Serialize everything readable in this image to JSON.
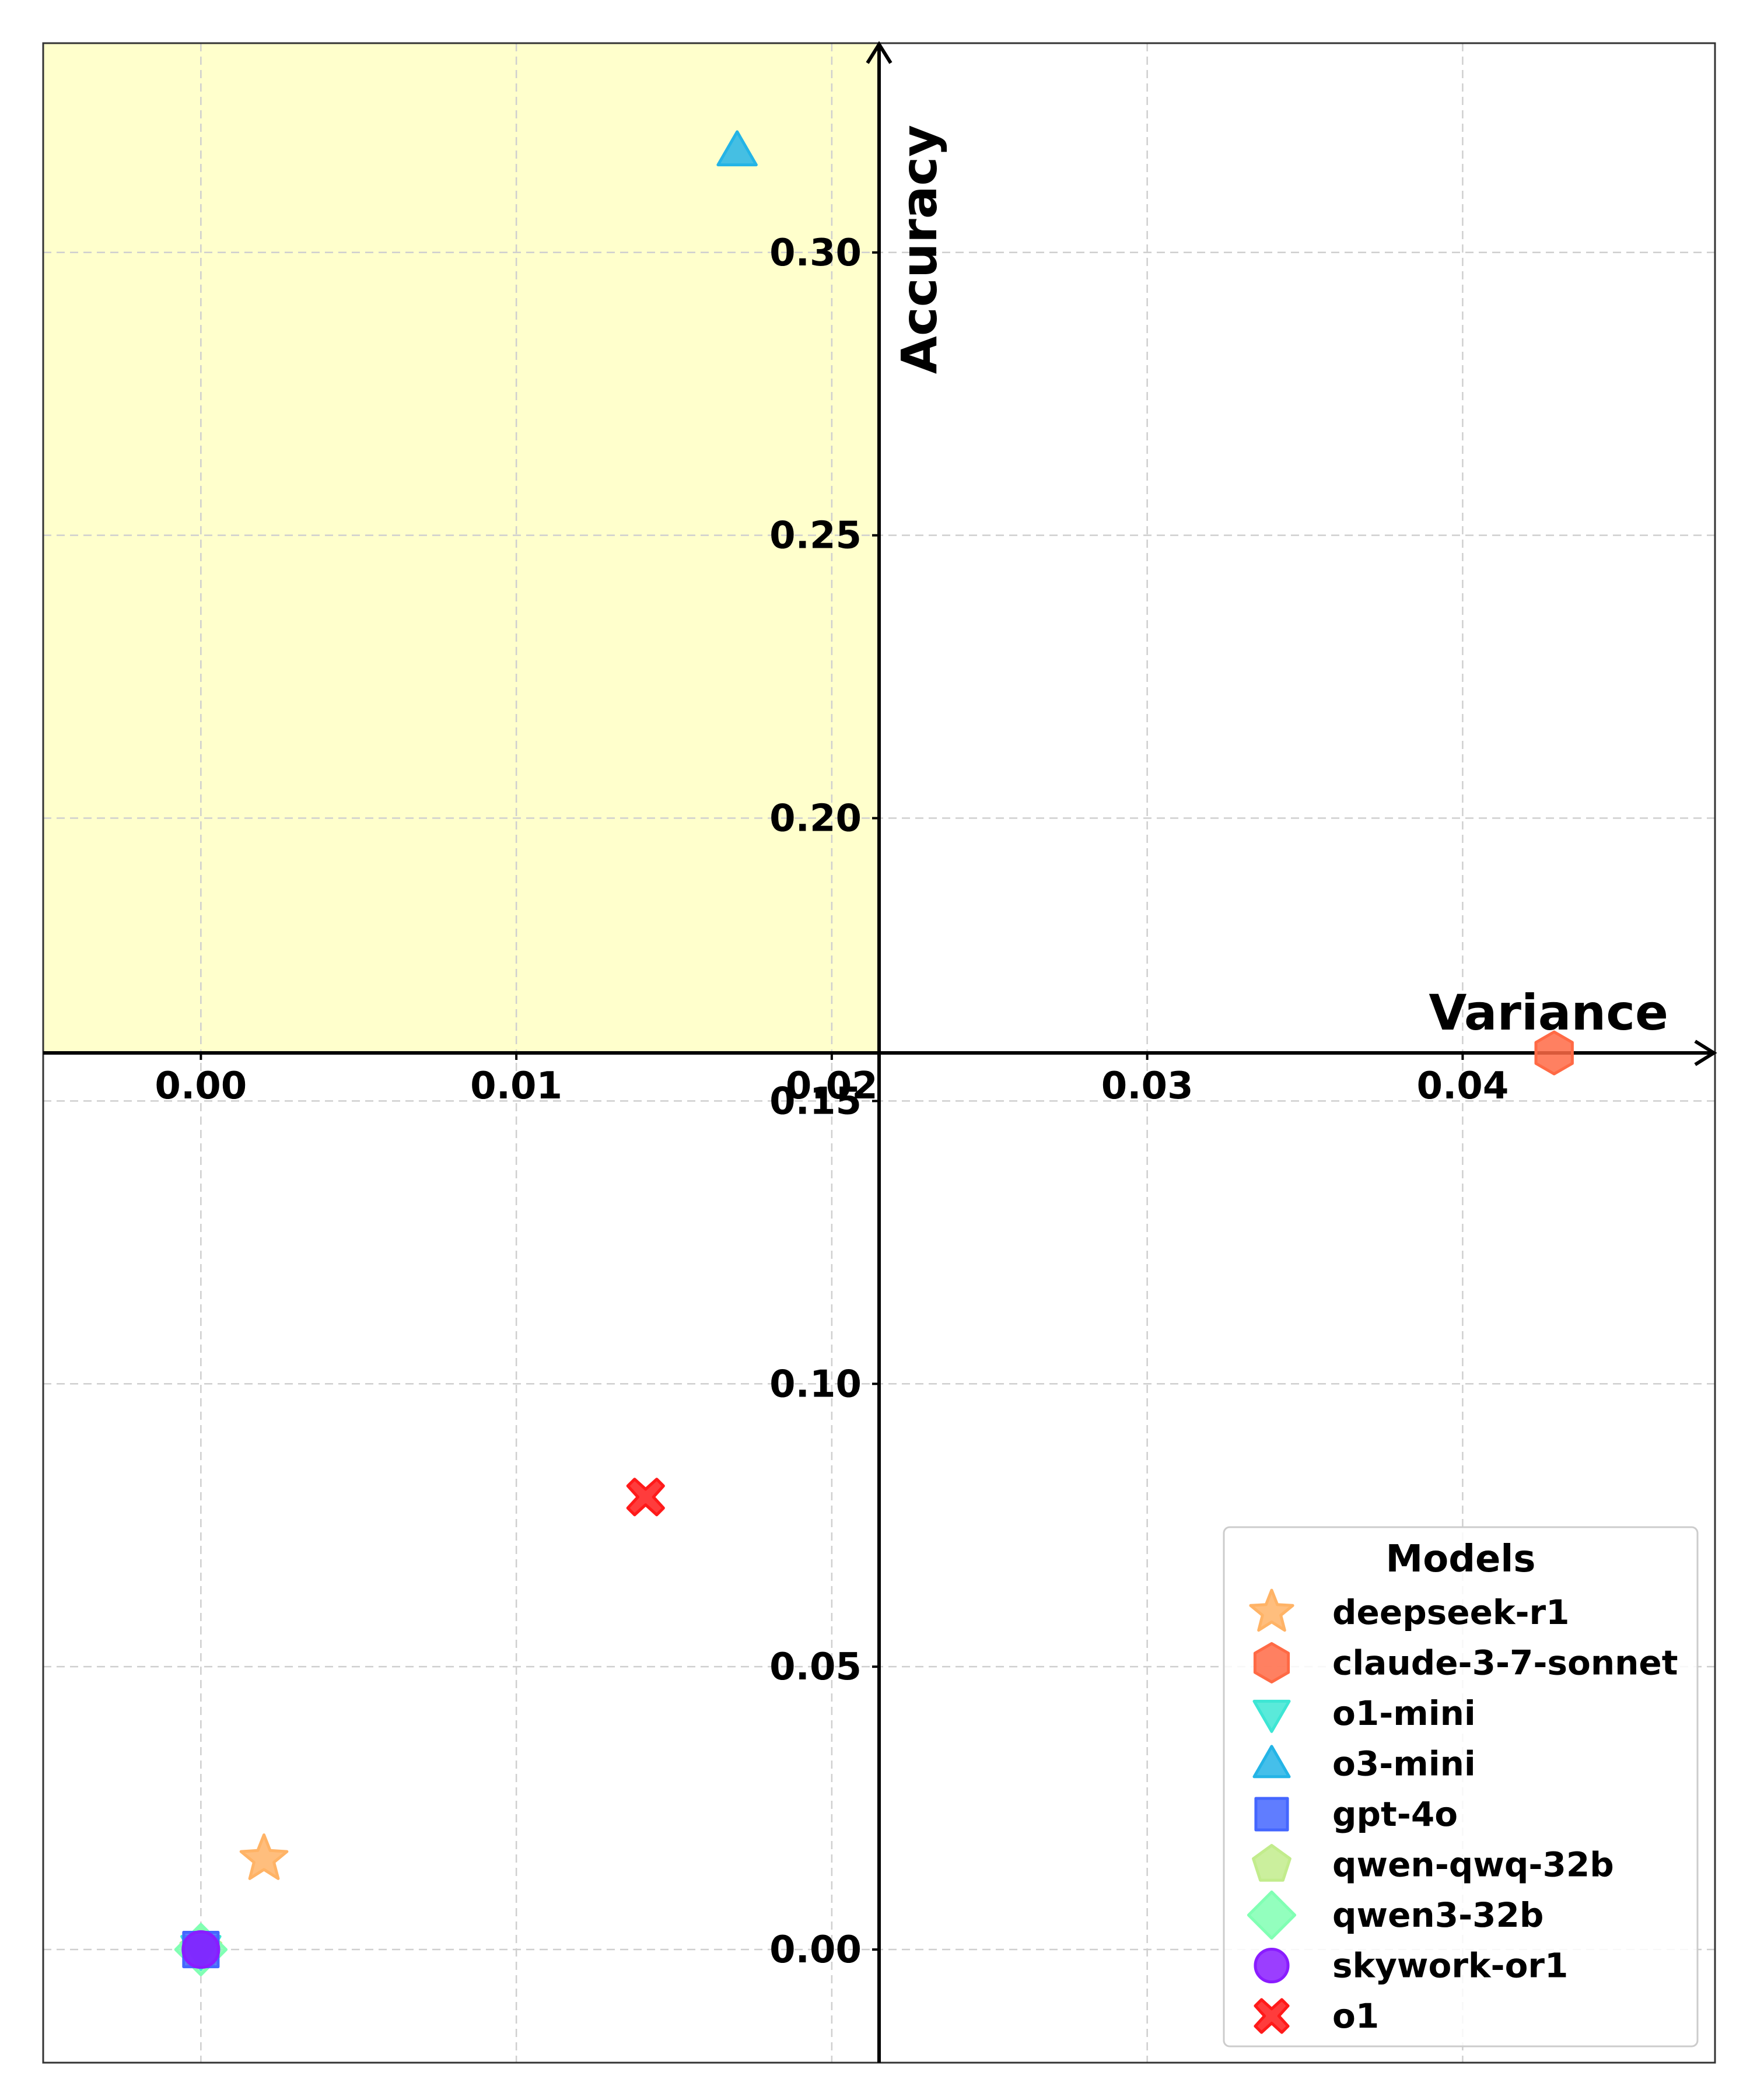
{
  "chart_data": {
    "type": "scatter",
    "title": "",
    "xlabel": "Variance",
    "ylabel": "Accuracy",
    "xlim": [
      -0.005,
      0.048
    ],
    "ylim": [
      -0.02,
      0.337
    ],
    "axis_origin": {
      "x": 0.0215,
      "y": 0.1585
    },
    "xticks": [
      0.0,
      0.01,
      0.02,
      0.03,
      0.04
    ],
    "xtick_labels": [
      "0.00",
      "0.01",
      "0.02",
      "0.03",
      "0.04"
    ],
    "yticks": [
      0.0,
      0.05,
      0.1,
      0.15,
      0.2,
      0.25,
      0.3
    ],
    "ytick_labels": [
      "0.00",
      "0.05",
      "0.10",
      "0.15",
      "0.20",
      "0.25",
      "0.30"
    ],
    "grid": true,
    "highlight_region": {
      "x": [
        -0.005,
        0.0215
      ],
      "y": [
        0.1585,
        0.337
      ],
      "color": "#ffffcc"
    },
    "legend": {
      "title": "Models",
      "placement": "lower right"
    },
    "series": [
      {
        "name": "deepseek-r1",
        "marker": "star",
        "color": "#ffb366",
        "x": [
          0.002
        ],
        "y": [
          0.016
        ]
      },
      {
        "name": "claude-3-7-sonnet",
        "marker": "hexagon",
        "color": "#ff6a45",
        "x": [
          0.0429
        ],
        "y": [
          0.1585
        ]
      },
      {
        "name": "o1-mini",
        "marker": "triangle-down",
        "color": "#3de6d4",
        "x": [
          0.0
        ],
        "y": [
          0.0
        ]
      },
      {
        "name": "o3-mini",
        "marker": "triangle-up",
        "color": "#24b4e6",
        "x": [
          0.017
        ],
        "y": [
          0.318
        ]
      },
      {
        "name": "gpt-4o",
        "marker": "square",
        "color": "#4466ff",
        "x": [
          0.0
        ],
        "y": [
          0.0
        ]
      },
      {
        "name": "qwen-qwq-32b",
        "marker": "pentagon",
        "color": "#c2ec8c",
        "x": [
          0.0
        ],
        "y": [
          0.0
        ]
      },
      {
        "name": "qwen3-32b",
        "marker": "diamond",
        "color": "#80ffb3",
        "x": [
          0.0
        ],
        "y": [
          0.0
        ]
      },
      {
        "name": "skywork-or1",
        "marker": "circle",
        "color": "#8a1cff",
        "x": [
          0.0
        ],
        "y": [
          0.0
        ]
      },
      {
        "name": "o1",
        "marker": "x",
        "color": "#ff1a1a",
        "x": [
          0.0141
        ],
        "y": [
          0.08
        ]
      }
    ]
  }
}
